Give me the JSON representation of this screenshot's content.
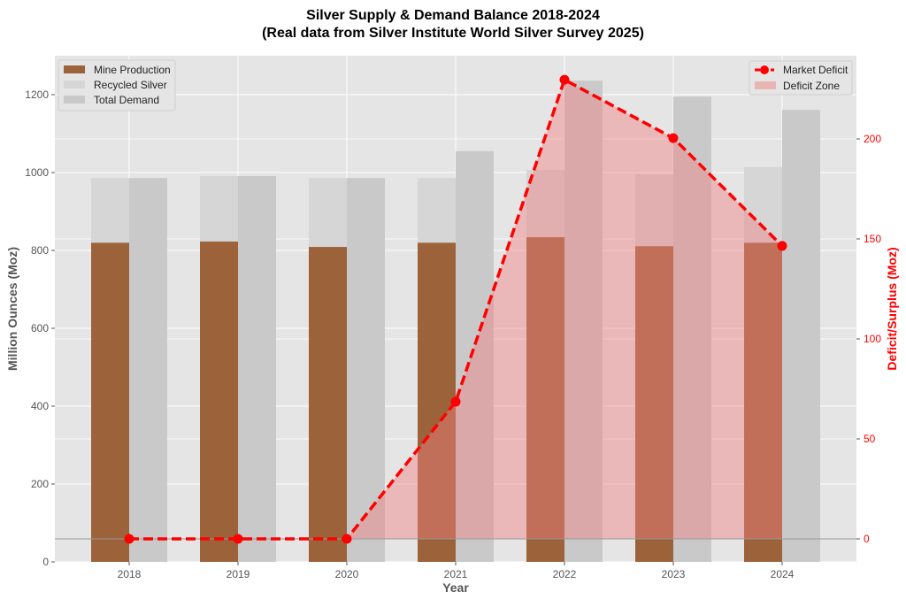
{
  "chart_data": {
    "type": "bar",
    "title": "Silver Supply & Demand Balance 2018-2024",
    "subtitle": "(Real data from Silver Institute World Silver Survey 2025)",
    "xlabel": "Year",
    "ylabel": "Million Ounces (Moz)",
    "y2label": "Deficit/Surplus (Moz)",
    "categories": [
      "2018",
      "2019",
      "2020",
      "2021",
      "2022",
      "2023",
      "2024"
    ],
    "ylim": [
      0,
      1300
    ],
    "y2lim": [
      -11.5,
      241.6
    ],
    "yticks": [
      0,
      200,
      400,
      600,
      800,
      1000,
      1200
    ],
    "y2ticks": [
      0,
      50,
      100,
      150,
      200
    ],
    "grid": true,
    "series": [
      {
        "name": "Mine Production",
        "type": "bar",
        "color": "#9c6239",
        "values": [
          820,
          823,
          809,
          820,
          834,
          811,
          820
        ]
      },
      {
        "name": "Recycled Silver",
        "type": "bar-stacked",
        "color": "#d6d6d6",
        "values": [
          166,
          168,
          177,
          166,
          173,
          184,
          194
        ]
      },
      {
        "name": "Total Demand",
        "type": "bar",
        "color": "#c9c9c9",
        "values": [
          986,
          991,
          986,
          1055,
          1236,
          1195,
          1161
        ]
      },
      {
        "name": "Market Deficit",
        "type": "line",
        "axis": "right",
        "color": "#ff0000",
        "values": [
          0,
          0,
          0,
          68.6,
          229.6,
          200.4,
          146.5
        ]
      },
      {
        "name": "Deficit Zone",
        "type": "area",
        "axis": "right",
        "color": "#e9a7a5"
      }
    ],
    "legend_left": "top-left",
    "legend_right": "top-right"
  }
}
